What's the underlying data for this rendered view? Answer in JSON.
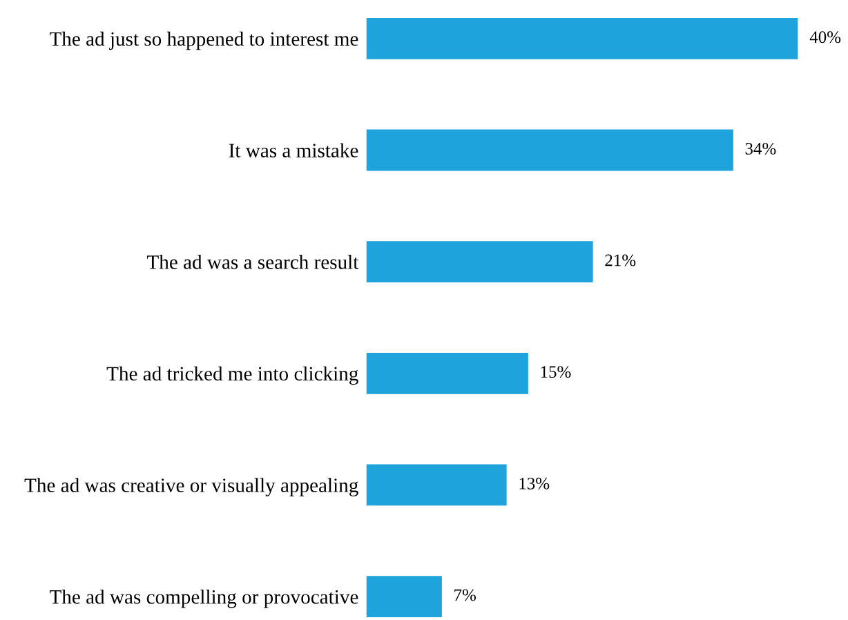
{
  "chart_data": {
    "type": "bar",
    "orientation": "horizontal",
    "categories": [
      "The ad just so happened to interest me",
      "It was a mistake",
      "The ad was a search result",
      "The ad tricked me into clicking",
      "The ad was creative or visually appealing",
      "The ad was compelling or provocative"
    ],
    "values": [
      40,
      34,
      21,
      15,
      13,
      7
    ],
    "value_labels": [
      "40%",
      "34%",
      "21%",
      "15%",
      "13%",
      "7%"
    ],
    "color": "#1ea3dc",
    "grid": false,
    "legend": false
  }
}
